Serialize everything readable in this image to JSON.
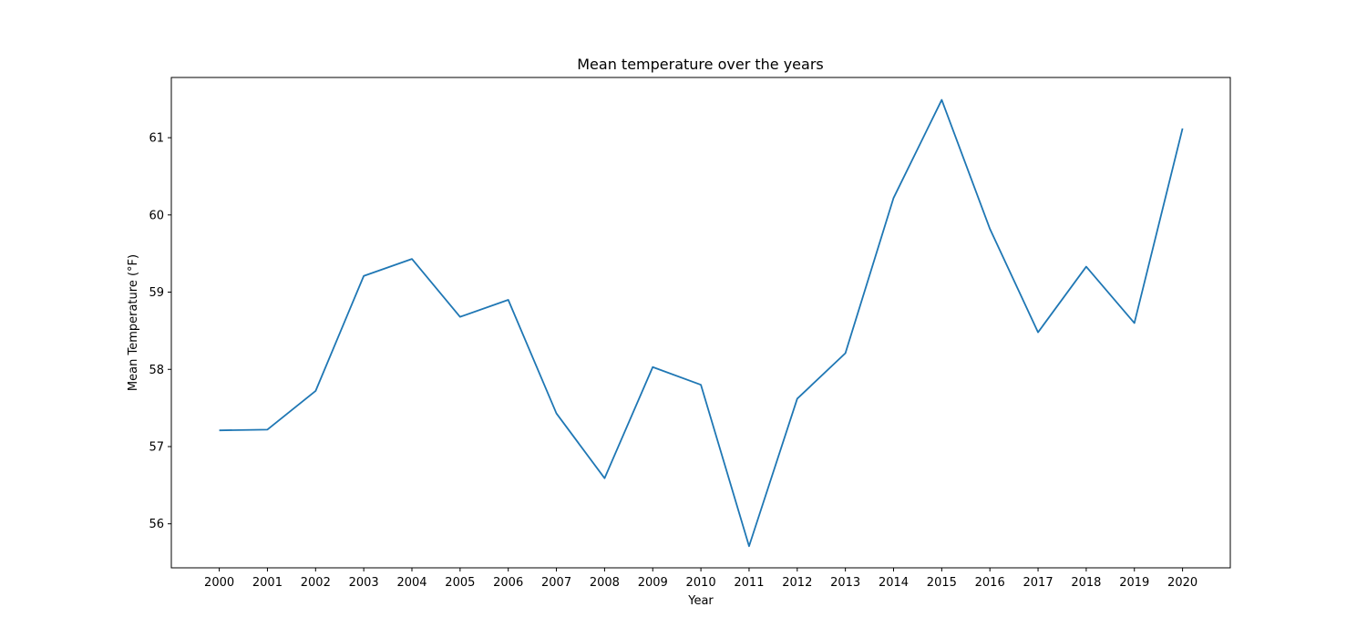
{
  "chart_data": {
    "type": "line",
    "title": "Mean temperature over the years",
    "xlabel": "Year",
    "ylabel": "Mean Temperature (°F)",
    "categories": [
      "2000",
      "2001",
      "2002",
      "2003",
      "2004",
      "2005",
      "2006",
      "2007",
      "2008",
      "2009",
      "2010",
      "2011",
      "2012",
      "2013",
      "2014",
      "2015",
      "2016",
      "2017",
      "2018",
      "2019",
      "2020"
    ],
    "series": [
      {
        "color": "#1f77b4",
        "values": [
          57.21,
          57.22,
          57.72,
          59.21,
          59.43,
          58.68,
          58.9,
          57.43,
          56.59,
          58.03,
          57.8,
          55.71,
          57.62,
          58.21,
          60.22,
          61.49,
          59.82,
          58.48,
          59.33,
          58.6,
          61.12
        ]
      }
    ],
    "ylim": [
      55.43,
      61.78
    ],
    "yticks": [
      56,
      57,
      58,
      59,
      60,
      61
    ],
    "grid": false,
    "legend": "none"
  }
}
